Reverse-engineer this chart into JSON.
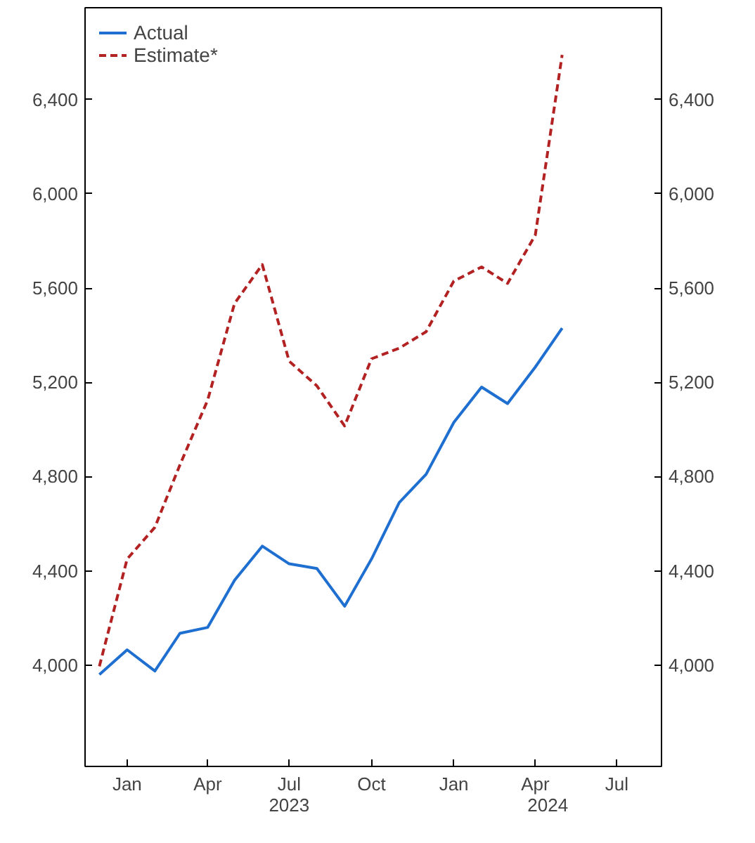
{
  "chart_data": {
    "type": "line",
    "x": [
      "2022-12-01",
      "2023-01-01",
      "2023-02-01",
      "2023-03-01",
      "2023-04-01",
      "2023-05-01",
      "2023-06-01",
      "2023-07-01",
      "2023-08-01",
      "2023-09-01",
      "2023-10-01",
      "2023-11-01",
      "2023-12-01",
      "2024-01-01",
      "2024-02-01",
      "2024-03-01",
      "2024-04-01",
      "2024-05-01"
    ],
    "series": [
      {
        "name": "Actual",
        "color": "#1f6fd0",
        "line_style": "solid",
        "values": [
          3960,
          4065,
          3975,
          4135,
          4160,
          4360,
          4505,
          4430,
          4410,
          4250,
          4450,
          4690,
          4810,
          5030,
          5180,
          5110,
          5265,
          5430
        ]
      },
      {
        "name": "Estimate*",
        "color": "#b22222",
        "line_style": "dashed",
        "values": [
          3995,
          4450,
          4585,
          4850,
          5125,
          5535,
          5700,
          5290,
          5185,
          5015,
          5300,
          5345,
          5415,
          5630,
          5690,
          5620,
          5825,
          6590
        ]
      }
    ],
    "xlim": [
      "2022-11-15",
      "2024-08-20"
    ],
    "xticks": [
      {
        "value": "2023-01-01",
        "label": "Jan"
      },
      {
        "value": "2023-04-01",
        "label": "Apr"
      },
      {
        "value": "2023-07-01",
        "label": "Jul"
      },
      {
        "value": "2023-10-01",
        "label": "Oct"
      },
      {
        "value": "2024-01-01",
        "label": "Jan"
      },
      {
        "value": "2024-04-01",
        "label": "Apr"
      },
      {
        "value": "2024-07-01",
        "label": "Jul"
      }
    ],
    "ylim": [
      3570,
      6790
    ],
    "yticks": [
      {
        "value": 4000,
        "label": "4,000"
      },
      {
        "value": 4400,
        "label": "4,400"
      },
      {
        "value": 4800,
        "label": "4,800"
      },
      {
        "value": 5200,
        "label": "5,200"
      },
      {
        "value": 5600,
        "label": "5,600"
      },
      {
        "value": 6000,
        "label": "6,000"
      },
      {
        "value": 6400,
        "label": "6,400"
      }
    ],
    "y2lim": [
      3570,
      6790
    ],
    "y2ticks": [
      {
        "value": 4000,
        "label": "4,000"
      },
      {
        "value": 4400,
        "label": "4,400"
      },
      {
        "value": 4800,
        "label": "4,800"
      },
      {
        "value": 5200,
        "label": "5,200"
      },
      {
        "value": 5600,
        "label": "5,600"
      },
      {
        "value": 6000,
        "label": "6,000"
      },
      {
        "value": 6400,
        "label": "6,400"
      }
    ],
    "x2lim": [
      "2022-11-15",
      "2024-08-20"
    ],
    "x2ticks": [
      {
        "value": "2023-07-01",
        "label": "2023"
      },
      {
        "value": "2024-04-15",
        "label": "2024"
      }
    ],
    "grid": false,
    "legend": "top left",
    "marker": "none"
  }
}
